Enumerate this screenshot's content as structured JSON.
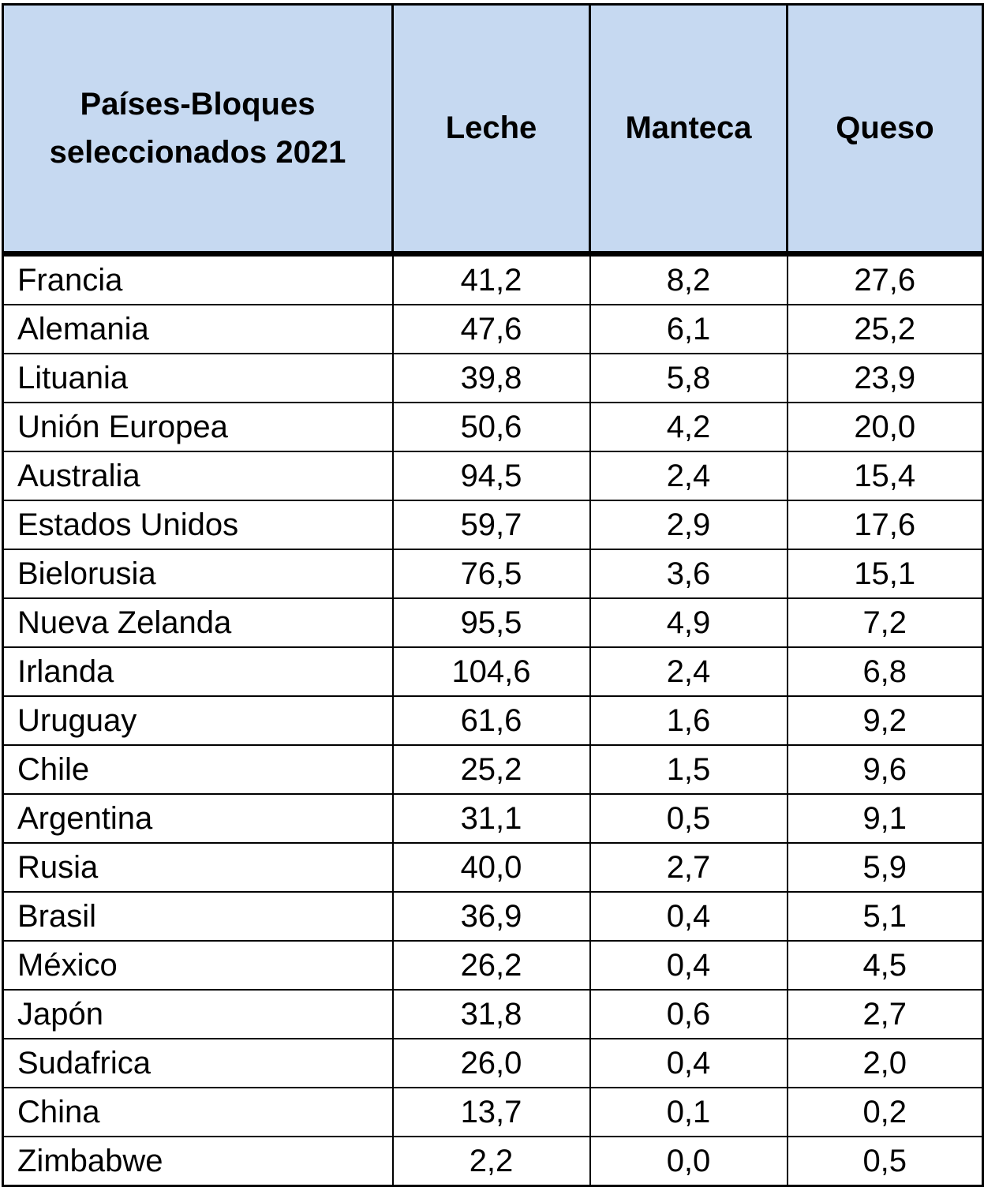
{
  "table": {
    "headers": [
      "Países-Bloques seleccionados 2021",
      "Leche",
      "Manteca",
      "Queso"
    ],
    "header_bg": "#c6d9f1",
    "rows": [
      [
        "Francia",
        "41,2",
        "8,2",
        "27,6"
      ],
      [
        "Alemania",
        "47,6",
        "6,1",
        "25,2"
      ],
      [
        "Lituania",
        "39,8",
        "5,8",
        "23,9"
      ],
      [
        "Unión Europea",
        "50,6",
        "4,2",
        "20,0"
      ],
      [
        "Australia",
        "94,5",
        "2,4",
        "15,4"
      ],
      [
        "Estados Unidos",
        "59,7",
        "2,9",
        "17,6"
      ],
      [
        "Bielorusia",
        "76,5",
        "3,6",
        "15,1"
      ],
      [
        "Nueva Zelanda",
        "95,5",
        "4,9",
        "7,2"
      ],
      [
        "Irlanda",
        "104,6",
        "2,4",
        "6,8"
      ],
      [
        "Uruguay",
        "61,6",
        "1,6",
        "9,2"
      ],
      [
        "Chile",
        "25,2",
        "1,5",
        "9,6"
      ],
      [
        "Argentina",
        "31,1",
        "0,5",
        "9,1"
      ],
      [
        "Rusia",
        "40,0",
        "2,7",
        "5,9"
      ],
      [
        "Brasil",
        "36,9",
        "0,4",
        "5,1"
      ],
      [
        "México",
        "26,2",
        "0,4",
        "4,5"
      ],
      [
        "Japón",
        "31,8",
        "0,6",
        "2,7"
      ],
      [
        "Sudafrica",
        "26,0",
        "0,4",
        "2,0"
      ],
      [
        "China",
        "13,7",
        "0,1",
        "0,2"
      ],
      [
        "Zimbabwe",
        "2,2",
        "0,0",
        "0,5"
      ]
    ]
  }
}
